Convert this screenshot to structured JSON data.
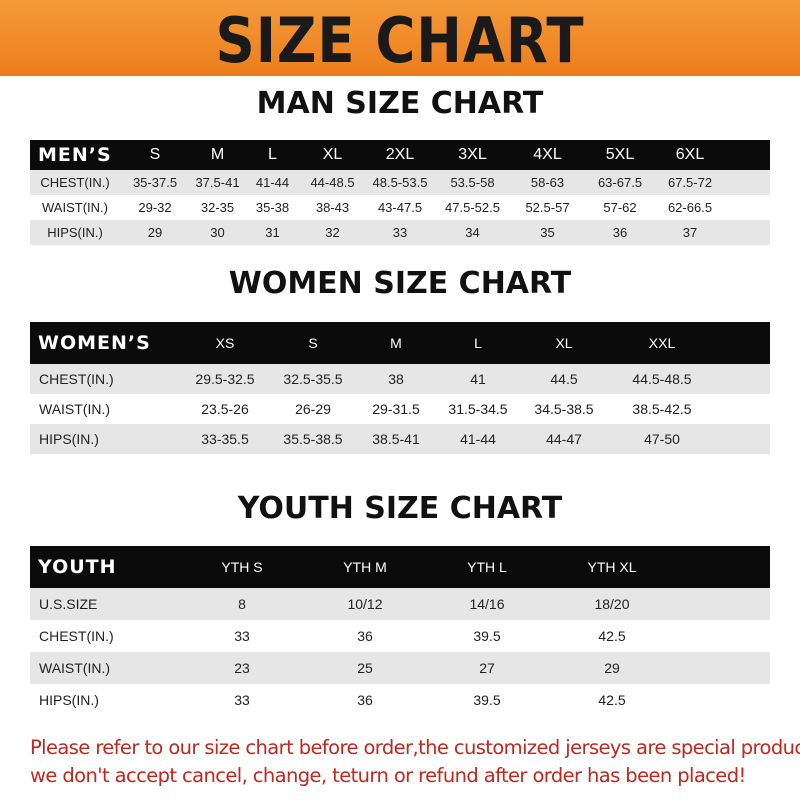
{
  "title": "SIZE CHART",
  "men": {
    "title": "MAN SIZE CHART",
    "header": "MEN’S",
    "sizes": [
      "S",
      "M",
      "L",
      "XL",
      "2XL",
      "3XL",
      "4XL",
      "5XL",
      "6XL"
    ],
    "rows": [
      {
        "label": "CHEST(IN.)",
        "values": [
          "35-37.5",
          "37.5-41",
          "41-44",
          "44-48.5",
          "48.5-53.5",
          "53.5-58",
          "58-63",
          "63-67.5",
          "67.5-72"
        ]
      },
      {
        "label": "WAIST(IN.)",
        "values": [
          "29-32",
          "32-35",
          "35-38",
          "38-43",
          "43-47.5",
          "47.5-52.5",
          "52.5-57",
          "57-62",
          "62-66.5"
        ]
      },
      {
        "label": "HIPS(IN.)",
        "values": [
          "29",
          "30",
          "31",
          "32",
          "33",
          "34",
          "35",
          "36",
          "37"
        ]
      }
    ]
  },
  "women": {
    "title": "WOMEN SIZE CHART",
    "header": "WOMEN’S",
    "sizes": [
      "XS",
      "S",
      "M",
      "L",
      "XL",
      "XXL"
    ],
    "rows": [
      {
        "label": "CHEST(IN.)",
        "values": [
          "29.5-32.5",
          "32.5-35.5",
          "38",
          "41",
          "44.5",
          "44.5-48.5"
        ]
      },
      {
        "label": "WAIST(IN.)",
        "values": [
          "23.5-26",
          "26-29",
          "29-31.5",
          "31.5-34.5",
          "34.5-38.5",
          "38.5-42.5"
        ]
      },
      {
        "label": "HIPS(IN.)",
        "values": [
          "33-35.5",
          "35.5-38.5",
          "38.5-41",
          "41-44",
          "44-47",
          "47-50"
        ]
      }
    ]
  },
  "youth": {
    "title": "YOUTH SIZE CHART",
    "header": "YOUTH",
    "sizes": [
      "YTH S",
      "YTH M",
      "YTH L",
      "YTH XL"
    ],
    "rows": [
      {
        "label": "U.S.SIZE",
        "values": [
          "8",
          "10/12",
          "14/16",
          "18/20"
        ]
      },
      {
        "label": "CHEST(IN.)",
        "values": [
          "33",
          "36",
          "39.5",
          "42.5"
        ]
      },
      {
        "label": "WAIST(IN.)",
        "values": [
          "23",
          "25",
          "27",
          "29"
        ]
      },
      {
        "label": "HIPS(IN.)",
        "values": [
          "33",
          "36",
          "39.5",
          "42.5"
        ]
      }
    ]
  },
  "notice": [
    "Please refer to our size chart before order,the customized jerseys are special products,",
    "we don't accept cancel, change, teturn or refund after order has been placed!"
  ],
  "colors": {
    "banner": "#ee7d1c",
    "header_row": "#0b0b0b",
    "stripe": "#e6e6e6",
    "notice": "#c0281e"
  }
}
